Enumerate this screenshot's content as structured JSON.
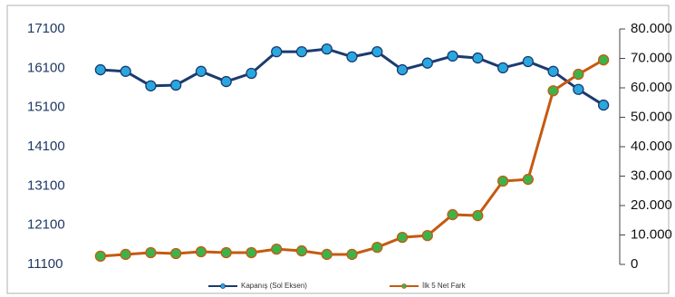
{
  "chart_data": {
    "type": "line",
    "categories": [
      null,
      null,
      null,
      null,
      null,
      null,
      null,
      null,
      null,
      null,
      null,
      null,
      null,
      null,
      null,
      null,
      null,
      null,
      null,
      null,
      null
    ],
    "series": [
      {
        "name": "Kapanış (Sol Eksen)",
        "color": "#1b3b6f",
        "marker_color": "#29a8e0",
        "values": [
          16060,
          16020,
          15650,
          15670,
          16020,
          15760,
          15970,
          16520,
          16520,
          16590,
          16390,
          16520,
          16060,
          16230,
          16410,
          16360,
          16110,
          16270,
          16020,
          15560,
          15160
        ]
      },
      {
        "name": "İlk 5 Net Fark",
        "color": "#c55a11",
        "marker_color": "#3cb34a",
        "axis": "y2",
        "values": [
          2800,
          3400,
          4000,
          3700,
          4300,
          4000,
          4000,
          5200,
          4600,
          3400,
          3400,
          5800,
          9200,
          9800,
          16900,
          16600,
          28300,
          28900,
          59000,
          64600,
          69500
        ]
      }
    ],
    "ylim": [
      11100,
      17100
    ],
    "yticks": [
      11100,
      12100,
      13100,
      14100,
      15100,
      16100,
      17100
    ],
    "y2lim": [
      0,
      80000
    ],
    "y2ticks": [
      0,
      {
        "value": 10000,
        "label": "10.000"
      },
      {
        "value": 20000,
        "label": "20.000"
      },
      {
        "value": 30000,
        "label": "30.000"
      },
      {
        "value": 40000,
        "label": "40.000"
      },
      {
        "value": 50000,
        "label": "50.000"
      },
      {
        "value": 60000,
        "label": "60.000"
      },
      {
        "value": 70000,
        "label": "70.000"
      },
      {
        "value": 80000,
        "label": "80.000"
      }
    ],
    "legend": "bottom"
  }
}
